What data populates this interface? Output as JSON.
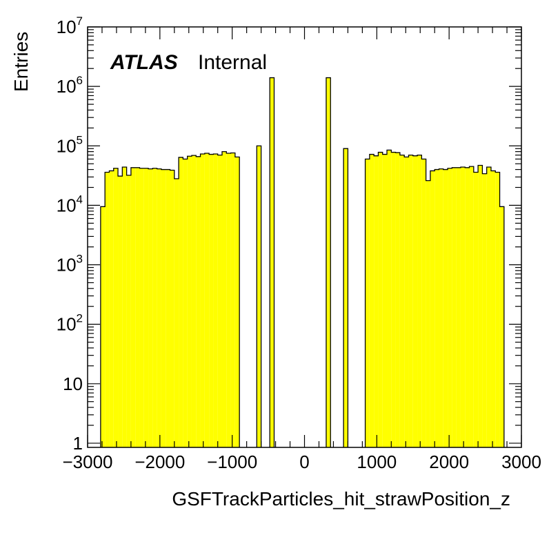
{
  "chart_data": {
    "type": "bar",
    "subtype": "histogram",
    "title": "",
    "xlabel": "GSFTrackParticles_hit_strawPosition_z",
    "ylabel": "Entries",
    "annotation": {
      "bold": "ATLAS",
      "normal": "Internal"
    },
    "xlim": [
      -3000,
      3000
    ],
    "ylim": [
      0.85,
      10000000
    ],
    "yscale": "log",
    "fill_color": "#ffff00",
    "line_color": "#000000",
    "x_ticks": [
      {
        "v": -3000,
        "label": "−3000"
      },
      {
        "v": -2000,
        "label": "−2000"
      },
      {
        "v": -1000,
        "label": "−1000"
      },
      {
        "v": 0,
        "label": "0"
      },
      {
        "v": 1000,
        "label": "1000"
      },
      {
        "v": 2000,
        "label": "2000"
      },
      {
        "v": 3000,
        "label": "3000"
      }
    ],
    "y_ticks": [
      {
        "v": 1,
        "base": "1",
        "exp": ""
      },
      {
        "v": 10,
        "base": "10",
        "exp": ""
      },
      {
        "v": 100,
        "base": "10",
        "exp": "2"
      },
      {
        "v": 1000,
        "base": "10",
        "exp": "3"
      },
      {
        "v": 10000,
        "base": "10",
        "exp": "4"
      },
      {
        "v": 100000,
        "base": "10",
        "exp": "5"
      },
      {
        "v": 1000000,
        "base": "10",
        "exp": "6"
      },
      {
        "v": 10000000,
        "base": "10",
        "exp": "7"
      }
    ],
    "bin_width": 60,
    "bins": [
      [
        -2820,
        9500
      ],
      [
        -2760,
        36000
      ],
      [
        -2700,
        38000
      ],
      [
        -2640,
        42000
      ],
      [
        -2580,
        31000
      ],
      [
        -2520,
        44000
      ],
      [
        -2460,
        32000
      ],
      [
        -2400,
        43000
      ],
      [
        -2340,
        43000
      ],
      [
        -2280,
        42000
      ],
      [
        -2220,
        42000
      ],
      [
        -2160,
        41000
      ],
      [
        -2100,
        42000
      ],
      [
        -2040,
        41000
      ],
      [
        -1980,
        40000
      ],
      [
        -1920,
        40000
      ],
      [
        -1860,
        39000
      ],
      [
        -1800,
        28000
      ],
      [
        -1740,
        64000
      ],
      [
        -1680,
        60000
      ],
      [
        -1620,
        67000
      ],
      [
        -1560,
        69000
      ],
      [
        -1500,
        66000
      ],
      [
        -1440,
        73000
      ],
      [
        -1380,
        75000
      ],
      [
        -1320,
        72000
      ],
      [
        -1260,
        73000
      ],
      [
        -1200,
        70000
      ],
      [
        -1140,
        80000
      ],
      [
        -1080,
        75000
      ],
      [
        -1020,
        76000
      ],
      [
        -960,
        65000
      ],
      [
        -660,
        100000
      ],
      [
        -480,
        1400000
      ],
      [
        300,
        1400000
      ],
      [
        540,
        90000
      ],
      [
        840,
        60000
      ],
      [
        900,
        72000
      ],
      [
        960,
        68000
      ],
      [
        1020,
        78000
      ],
      [
        1080,
        72000
      ],
      [
        1140,
        85000
      ],
      [
        1200,
        78000
      ],
      [
        1260,
        77000
      ],
      [
        1320,
        70000
      ],
      [
        1380,
        65000
      ],
      [
        1440,
        70000
      ],
      [
        1500,
        68000
      ],
      [
        1560,
        70000
      ],
      [
        1620,
        60000
      ],
      [
        1680,
        26000
      ],
      [
        1740,
        38000
      ],
      [
        1800,
        40000
      ],
      [
        1860,
        41000
      ],
      [
        1920,
        40000
      ],
      [
        1980,
        42000
      ],
      [
        2040,
        43000
      ],
      [
        2100,
        43000
      ],
      [
        2160,
        44000
      ],
      [
        2220,
        43000
      ],
      [
        2280,
        45000
      ],
      [
        2340,
        36000
      ],
      [
        2400,
        47000
      ],
      [
        2460,
        34000
      ],
      [
        2520,
        44000
      ],
      [
        2580,
        38000
      ],
      [
        2640,
        36000
      ],
      [
        2700,
        9500
      ]
    ]
  }
}
